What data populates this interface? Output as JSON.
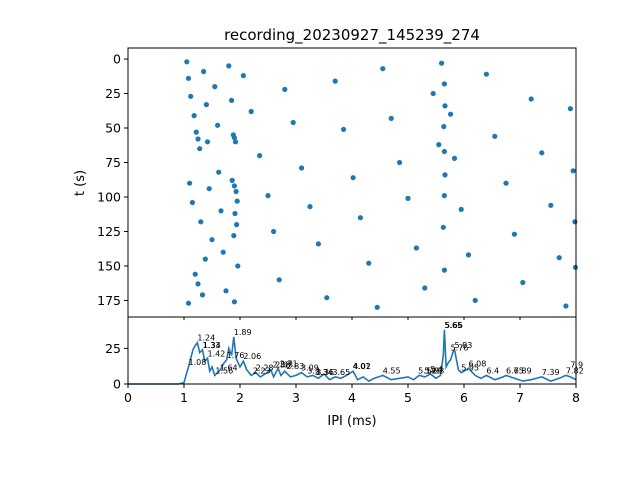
{
  "colors": {
    "series": "#1f77b4",
    "axis": "#000000",
    "background": "#ffffff"
  },
  "chart_data": [
    {
      "type": "scatter",
      "title": "recording_20230927_145239_274",
      "xlabel": "",
      "ylabel": "t (s)",
      "xlim": [
        0,
        8
      ],
      "ylim": [
        187,
        -8
      ],
      "y_inverted": true,
      "yticks": [
        0,
        25,
        50,
        75,
        100,
        125,
        150,
        175
      ],
      "ytick_labels": [
        "0",
        "25",
        "50",
        "75",
        "100",
        "125",
        "150",
        "175"
      ],
      "x_ticks_shared_with_lower_panel": true,
      "grid": false,
      "note_points": "dense raster of inter-spike intervals; clusters near IPI 1.1-1.3, 1.8-2.0 and 5.65 ms",
      "series": [
        {
          "marker": "circle",
          "points": [
            [
              1.05,
              2
            ],
            [
              1.08,
              14
            ],
            [
              1.12,
              27
            ],
            [
              1.18,
              41
            ],
            [
              1.22,
              53
            ],
            [
              1.25,
              58
            ],
            [
              1.28,
              65
            ],
            [
              1.1,
              90
            ],
            [
              1.15,
              104
            ],
            [
              1.3,
              118
            ],
            [
              1.2,
              156
            ],
            [
              1.25,
              163
            ],
            [
              1.33,
              171
            ],
            [
              1.08,
              177
            ],
            [
              1.35,
              9
            ],
            [
              1.4,
              33
            ],
            [
              1.42,
              60
            ],
            [
              1.45,
              94
            ],
            [
              1.5,
              131
            ],
            [
              1.38,
              145
            ],
            [
              1.55,
              20
            ],
            [
              1.6,
              48
            ],
            [
              1.62,
              82
            ],
            [
              1.66,
              110
            ],
            [
              1.7,
              140
            ],
            [
              1.75,
              168
            ],
            [
              1.8,
              5
            ],
            [
              1.85,
              30
            ],
            [
              1.88,
              55
            ],
            [
              1.9,
              57
            ],
            [
              1.92,
              60
            ],
            [
              1.86,
              88
            ],
            [
              1.9,
              92
            ],
            [
              1.93,
              96
            ],
            [
              1.95,
              103
            ],
            [
              1.91,
              112
            ],
            [
              1.94,
              120
            ],
            [
              1.89,
              128
            ],
            [
              1.96,
              150
            ],
            [
              1.9,
              176
            ],
            [
              2.06,
              12
            ],
            [
              2.2,
              38
            ],
            [
              2.35,
              70
            ],
            [
              2.5,
              99
            ],
            [
              2.6,
              125
            ],
            [
              2.7,
              160
            ],
            [
              2.8,
              22
            ],
            [
              2.95,
              46
            ],
            [
              3.1,
              79
            ],
            [
              3.25,
              107
            ],
            [
              3.4,
              134
            ],
            [
              3.55,
              173
            ],
            [
              3.7,
              16
            ],
            [
              3.85,
              51
            ],
            [
              4.02,
              86
            ],
            [
              4.15,
              115
            ],
            [
              4.3,
              148
            ],
            [
              4.45,
              180
            ],
            [
              4.55,
              7
            ],
            [
              4.7,
              43
            ],
            [
              4.85,
              75
            ],
            [
              5.0,
              101
            ],
            [
              5.15,
              137
            ],
            [
              5.3,
              166
            ],
            [
              5.45,
              25
            ],
            [
              5.55,
              62
            ],
            [
              5.6,
              3
            ],
            [
              5.65,
              18
            ],
            [
              5.66,
              34
            ],
            [
              5.64,
              49
            ],
            [
              5.65,
              67
            ],
            [
              5.66,
              84
            ],
            [
              5.65,
              99
            ],
            [
              5.63,
              122
            ],
            [
              5.65,
              153
            ],
            [
              5.76,
              40
            ],
            [
              5.83,
              72
            ],
            [
              5.95,
              109
            ],
            [
              6.08,
              142
            ],
            [
              6.2,
              175
            ],
            [
              6.4,
              11
            ],
            [
              6.55,
              56
            ],
            [
              6.75,
              90
            ],
            [
              6.9,
              127
            ],
            [
              7.05,
              162
            ],
            [
              7.2,
              29
            ],
            [
              7.39,
              68
            ],
            [
              7.55,
              106
            ],
            [
              7.7,
              144
            ],
            [
              7.82,
              179
            ],
            [
              7.9,
              36
            ],
            [
              7.95,
              81
            ],
            [
              7.98,
              118
            ],
            [
              7.99,
              151
            ]
          ]
        }
      ]
    },
    {
      "type": "line",
      "xlabel": "IPI (ms)",
      "ylabel": "",
      "xlim": [
        0,
        8
      ],
      "ylim": [
        0,
        47
      ],
      "xticks": [
        0,
        1,
        2,
        3,
        4,
        5,
        6,
        7,
        8
      ],
      "xtick_labels": [
        "0",
        "1",
        "2",
        "3",
        "4",
        "5",
        "6",
        "7",
        "8"
      ],
      "yticks": [
        0,
        25
      ],
      "ytick_labels": [
        "0",
        "25"
      ],
      "grid": false,
      "series": [
        {
          "x": [
            0,
            0.5,
            0.9,
            1.0,
            1.05,
            1.08,
            1.12,
            1.16,
            1.2,
            1.24,
            1.28,
            1.33,
            1.37,
            1.42,
            1.46,
            1.5,
            1.55,
            1.6,
            1.65,
            1.7,
            1.76,
            1.8,
            1.85,
            1.89,
            1.93,
            2.0,
            2.06,
            2.12,
            2.2,
            2.28,
            2.36,
            2.45,
            2.55,
            2.6,
            2.68,
            2.73,
            2.8,
            2.9,
            3.0,
            3.1,
            3.2,
            3.3,
            3.4,
            3.5,
            3.6,
            3.7,
            3.8,
            3.9,
            4.02,
            4.1,
            4.2,
            4.3,
            4.4,
            4.55,
            4.7,
            4.85,
            5.0,
            5.1,
            5.2,
            5.3,
            5.4,
            5.5,
            5.58,
            5.63,
            5.65,
            5.68,
            5.72,
            5.76,
            5.8,
            5.83,
            5.9,
            5.95,
            6.0,
            6.08,
            6.2,
            6.3,
            6.4,
            6.55,
            6.7,
            6.75,
            6.9,
            7.05,
            7.2,
            7.39,
            7.55,
            7.7,
            7.82,
            7.9,
            8.0
          ],
          "y": [
            0,
            0,
            0,
            1,
            8,
            12,
            18,
            24,
            27,
            29,
            22,
            24,
            16,
            18,
            9,
            12,
            6,
            8,
            10,
            14,
            17,
            25,
            20,
            33,
            18,
            12,
            16,
            10,
            6,
            8,
            5,
            7,
            10,
            5,
            11,
            6,
            9,
            5,
            6,
            8,
            5,
            6,
            4,
            7,
            3,
            5,
            4,
            6,
            9,
            3,
            5,
            2,
            4,
            6,
            3,
            4,
            5,
            3,
            6,
            5,
            7,
            4,
            6,
            20,
            38,
            12,
            15,
            17,
            22,
            24,
            10,
            8,
            9,
            11,
            6,
            4,
            6,
            3,
            5,
            6,
            4,
            2,
            3,
            5,
            2,
            4,
            6,
            5,
            3
          ]
        }
      ],
      "annotations": [
        {
          "x": 1.08,
          "y": 12,
          "text": "1.08"
        },
        {
          "x": 1.24,
          "y": 29,
          "text": "1.24"
        },
        {
          "x": 1.33,
          "y": 24,
          "text": "1.33"
        },
        {
          "x": 1.34,
          "y": 24,
          "text": "1.34"
        },
        {
          "x": 1.42,
          "y": 18,
          "text": "1.42"
        },
        {
          "x": 1.56,
          "y": 6,
          "text": "1.56"
        },
        {
          "x": 1.64,
          "y": 8,
          "text": "1.64"
        },
        {
          "x": 1.76,
          "y": 17,
          "text": "1.76"
        },
        {
          "x": 1.89,
          "y": 33,
          "text": "1.89"
        },
        {
          "x": 2.06,
          "y": 16,
          "text": "2.06"
        },
        {
          "x": 2.23,
          "y": 6,
          "text": "2.23"
        },
        {
          "x": 2.28,
          "y": 8,
          "text": "2.28"
        },
        {
          "x": 2.58,
          "y": 10,
          "text": "2.58"
        },
        {
          "x": 2.63,
          "y": 10,
          "text": "2.63"
        },
        {
          "x": 2.71,
          "y": 11,
          "text": "2.71"
        },
        {
          "x": 2.83,
          "y": 9,
          "text": "2.83"
        },
        {
          "x": 3.09,
          "y": 8,
          "text": "3.09"
        },
        {
          "x": 3.2,
          "y": 6,
          "text": "3.2"
        },
        {
          "x": 3.34,
          "y": 5,
          "text": "3.34"
        },
        {
          "x": 3.36,
          "y": 5,
          "text": "3.36"
        },
        {
          "x": 3.65,
          "y": 5,
          "text": "3.65"
        },
        {
          "x": 4.01,
          "y": 9,
          "text": "4.01"
        },
        {
          "x": 4.02,
          "y": 9,
          "text": "4.02"
        },
        {
          "x": 4.55,
          "y": 6,
          "text": "4.55"
        },
        {
          "x": 5.18,
          "y": 6,
          "text": "5.18"
        },
        {
          "x": 5.29,
          "y": 6,
          "text": "5.29"
        },
        {
          "x": 5.33,
          "y": 6,
          "text": "5.33"
        },
        {
          "x": 5.4,
          "y": 7,
          "text": "5.4"
        },
        {
          "x": 5.65,
          "y": 38,
          "text": "5.65"
        },
        {
          "x": 5.66,
          "y": 38,
          "text": "5.66"
        },
        {
          "x": 5.76,
          "y": 22,
          "text": "5.76"
        },
        {
          "x": 5.83,
          "y": 24,
          "text": "5.83"
        },
        {
          "x": 5.95,
          "y": 8,
          "text": "5.95"
        },
        {
          "x": 6.08,
          "y": 11,
          "text": "6.08"
        },
        {
          "x": 6.4,
          "y": 6,
          "text": "6.4"
        },
        {
          "x": 6.75,
          "y": 6,
          "text": "6.75"
        },
        {
          "x": 6.89,
          "y": 6,
          "text": "6.89"
        },
        {
          "x": 7.39,
          "y": 5,
          "text": "7.39"
        },
        {
          "x": 7.82,
          "y": 6,
          "text": "7.82"
        },
        {
          "x": 7.9,
          "y": 10,
          "text": "7.9"
        }
      ]
    }
  ]
}
